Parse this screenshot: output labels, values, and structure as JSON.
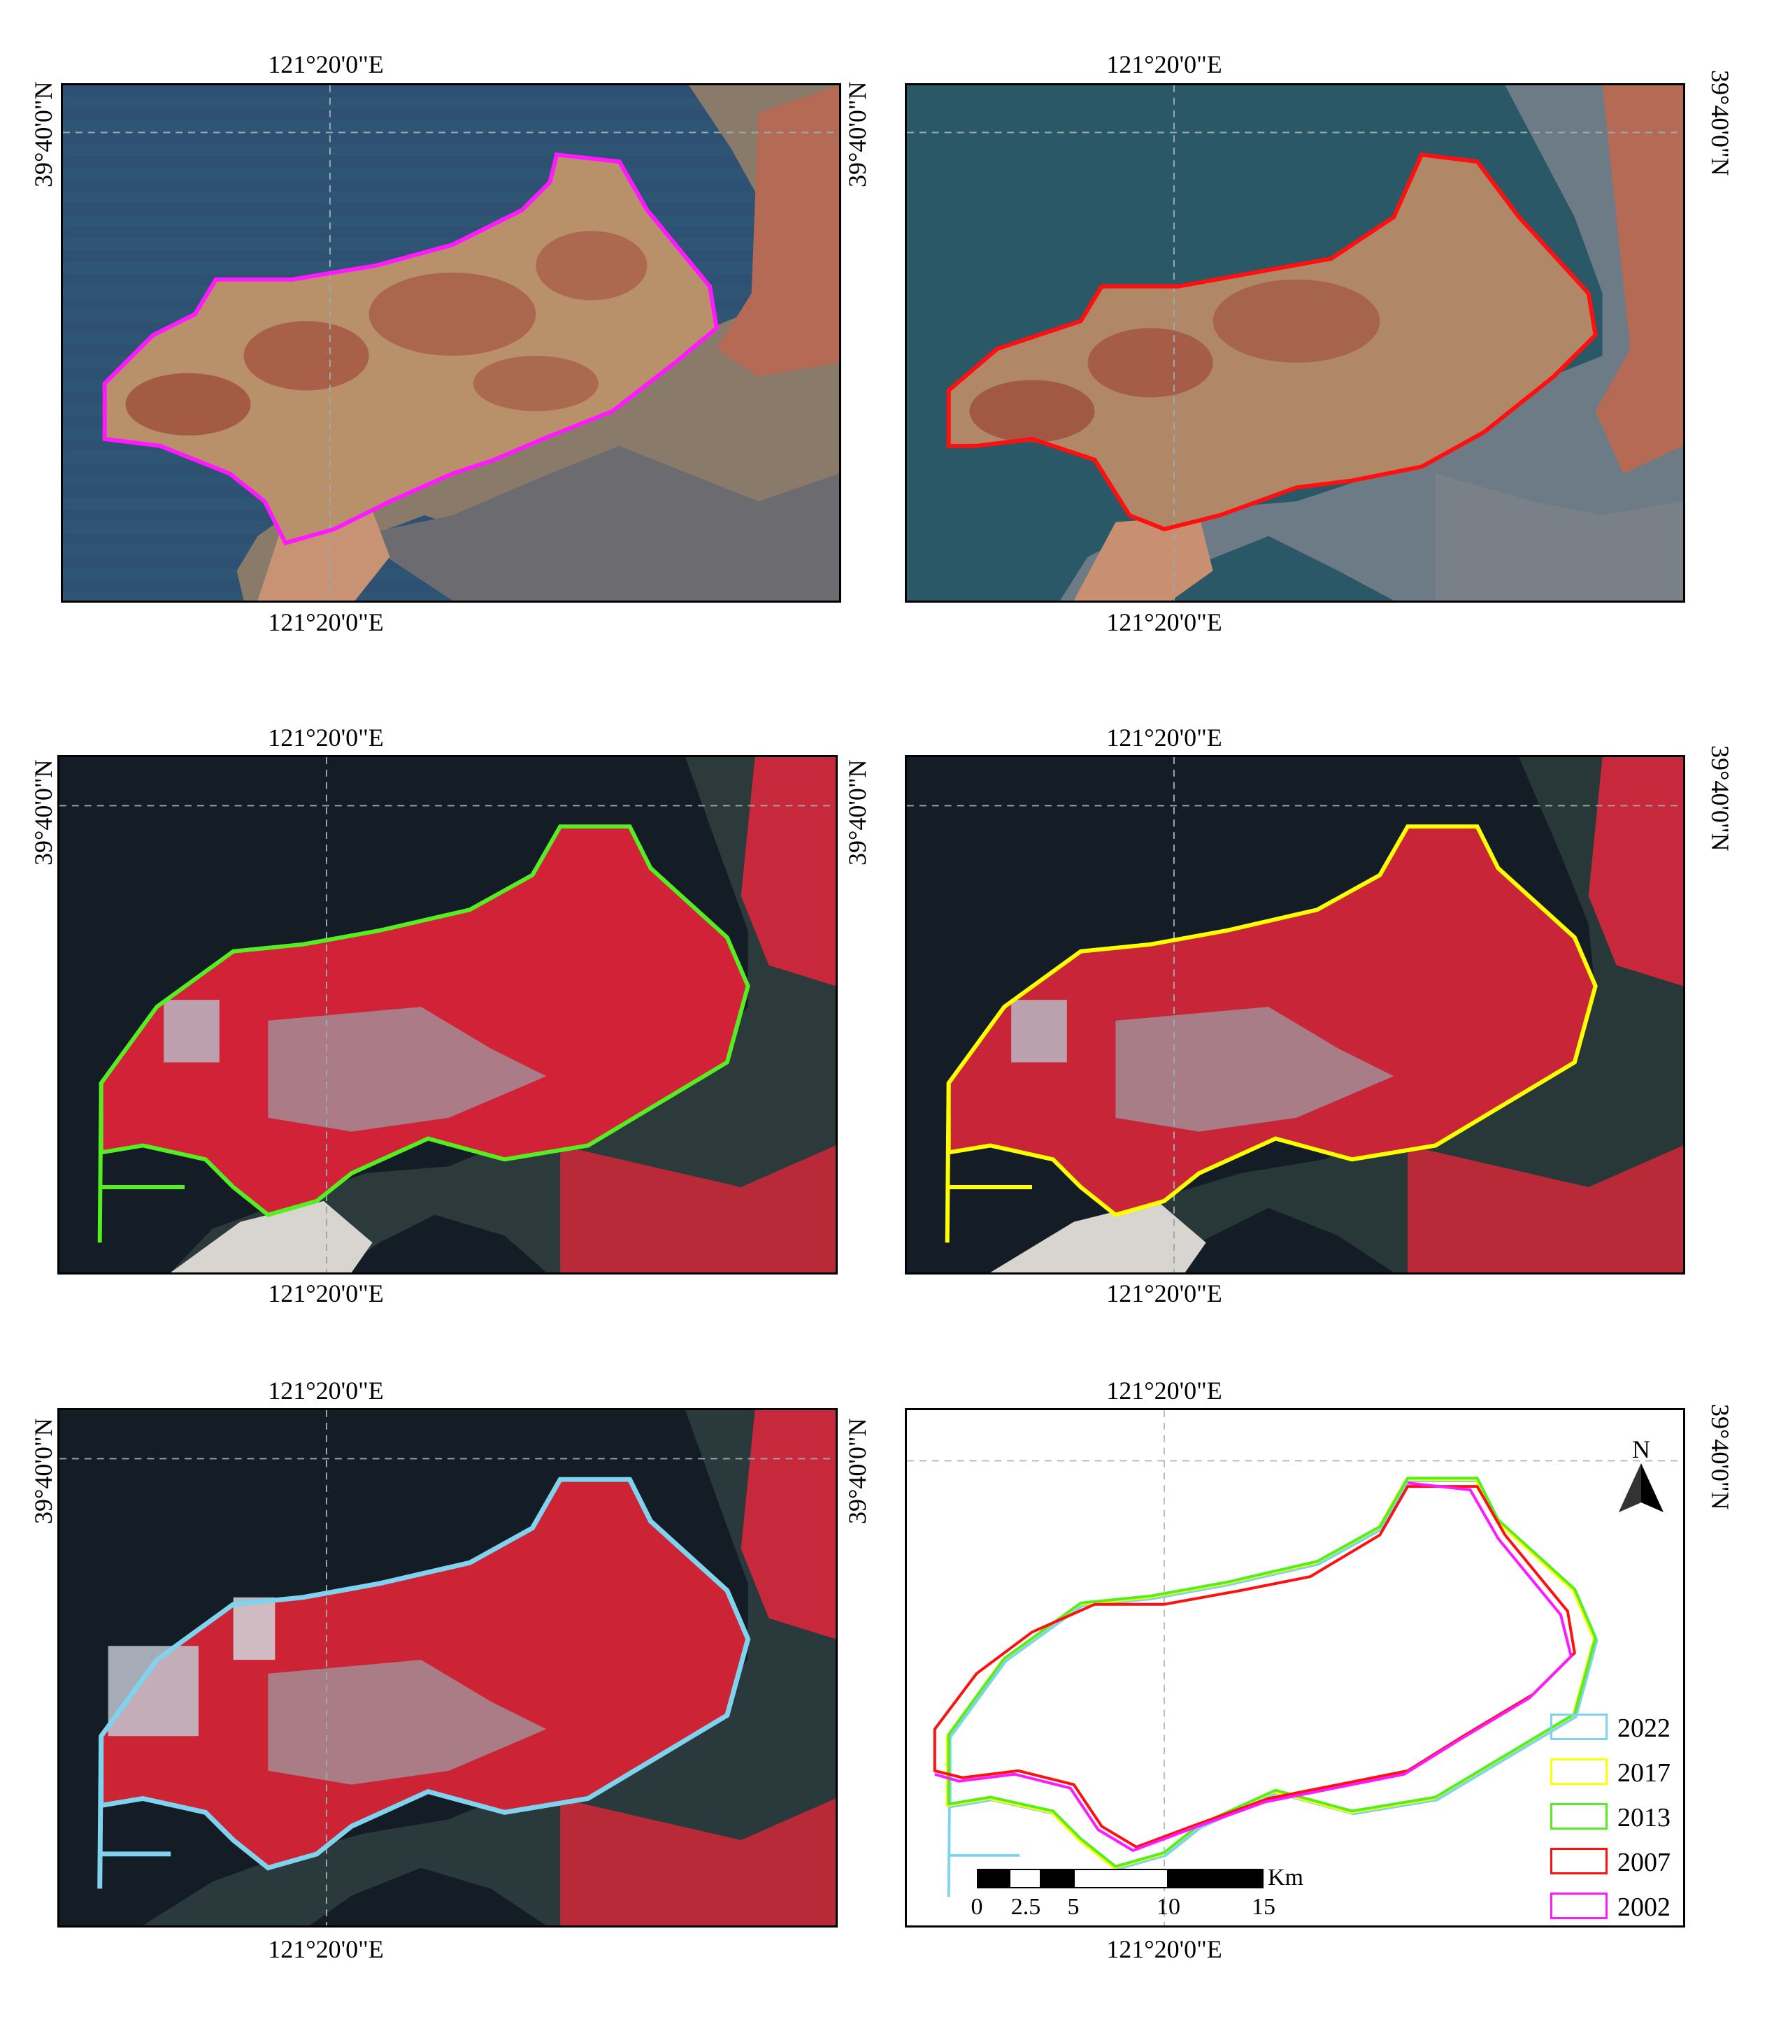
{
  "graticule": {
    "lon_label": "121°20'0\"E",
    "lat_label": "39°40'0\"N"
  },
  "panels": [
    {
      "name": "panel-2002",
      "year": "2002",
      "boundary_color": "#ff19ff",
      "imagery": "natural-color"
    },
    {
      "name": "panel-2007",
      "year": "2007",
      "boundary_color": "#ff1010",
      "imagery": "natural-color"
    },
    {
      "name": "panel-2013",
      "year": "2013",
      "boundary_color": "#55ee22",
      "imagery": "false-color"
    },
    {
      "name": "panel-2017",
      "year": "2017",
      "boundary_color": "#ffff00",
      "imagery": "false-color"
    },
    {
      "name": "panel-2022",
      "year": "2022",
      "boundary_color": "#7fd3ee",
      "imagery": "false-color"
    }
  ],
  "north_arrow": {
    "label": "N",
    "icon": "north-arrow-icon"
  },
  "scale_bar": {
    "unit": "Km",
    "ticks": [
      "0",
      "2.5",
      "5",
      "10",
      "15"
    ]
  },
  "legend": [
    {
      "label": "2022",
      "color": "#7fd3ee"
    },
    {
      "label": "2017",
      "color": "#ffff00"
    },
    {
      "label": "2013",
      "color": "#55ee22"
    },
    {
      "label": "2007",
      "color": "#ff1010"
    },
    {
      "label": "2002",
      "color": "#ff19ff"
    }
  ]
}
